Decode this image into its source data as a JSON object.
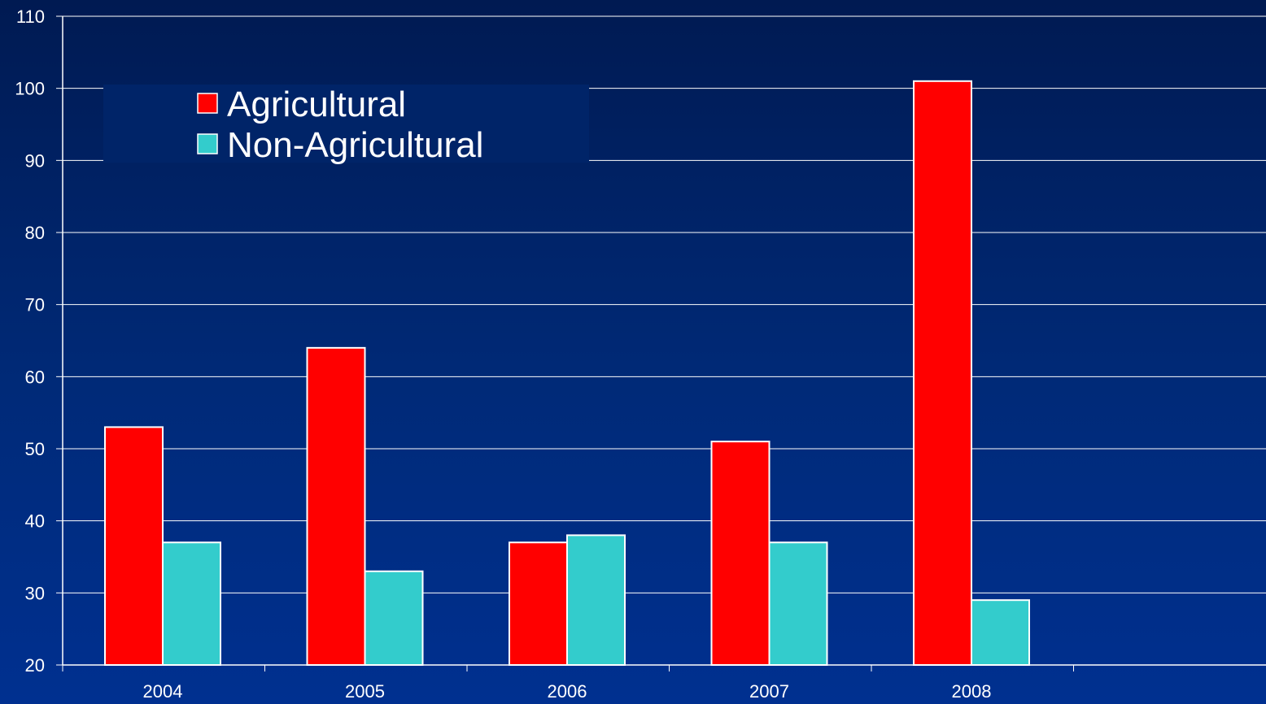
{
  "chart_data": {
    "type": "bar",
    "categories": [
      "2004",
      "2005",
      "2006",
      "2007",
      "2008"
    ],
    "series": [
      {
        "name": "Agricultural",
        "values": [
          53,
          64,
          37,
          51,
          101
        ],
        "color": "#ff0000"
      },
      {
        "name": "Non-Agricultural",
        "values": [
          37,
          33,
          38,
          37,
          29
        ],
        "color": "#33cccc"
      }
    ],
    "ylim": [
      20,
      110
    ],
    "yticks": [
      "20",
      "30",
      "40",
      "50",
      "60",
      "70",
      "80",
      "90",
      "100",
      "110"
    ],
    "grid": true,
    "legend_position": "top-left",
    "title": "",
    "xlabel": "",
    "ylabel": ""
  }
}
